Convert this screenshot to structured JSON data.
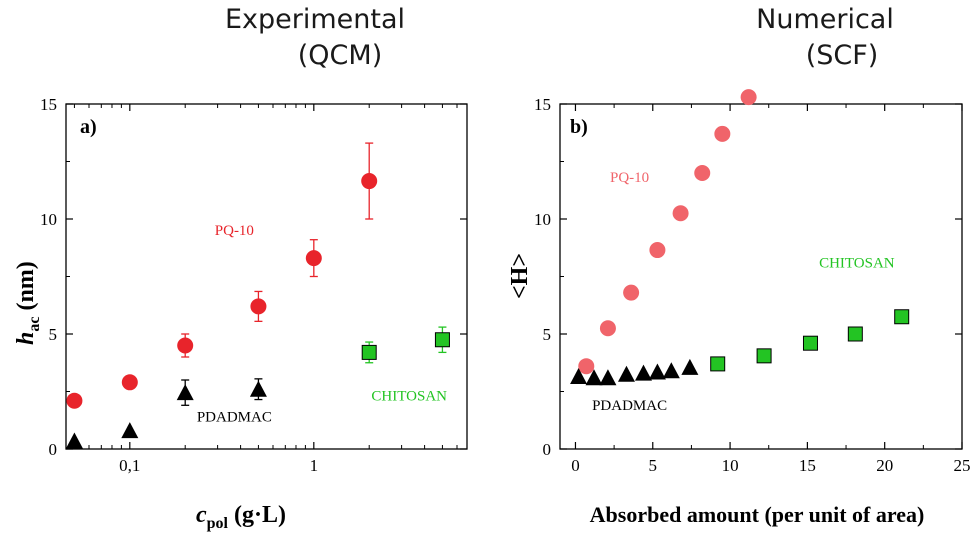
{
  "headers": {
    "left": {
      "line1": "Experimental",
      "line2": "(QCM)"
    },
    "right": {
      "line1": "Numerical",
      "line2": "(SCF)"
    }
  },
  "chart_data": [
    {
      "type": "scatter",
      "panel_label": "a)",
      "xlabel_main": "c",
      "xlabel_sub": "pol",
      "xlabel_rest": " (g·L)",
      "ylabel_main": "h",
      "ylabel_sub": "ac",
      "ylabel_rest": " (nm)",
      "xscale": "log",
      "xlim": [
        0.045,
        6.8
      ],
      "ylim": [
        0,
        15
      ],
      "xticks": [
        {
          "value": 0.1,
          "label": "0,1"
        },
        {
          "value": 1,
          "label": "1"
        }
      ],
      "yticks": [
        0,
        5,
        10,
        15
      ],
      "series": [
        {
          "name": "PQ-10",
          "marker": "circle",
          "color": "#e8242b",
          "label_x": 0.37,
          "label_y": 9.3,
          "points": [
            {
              "x": 0.05,
              "y": 2.1,
              "err": 0
            },
            {
              "x": 0.1,
              "y": 2.9,
              "err": 0
            },
            {
              "x": 0.2,
              "y": 4.5,
              "err": 0.5
            },
            {
              "x": 0.5,
              "y": 6.2,
              "err": 0.65
            },
            {
              "x": 1.0,
              "y": 8.3,
              "err": 0.8
            },
            {
              "x": 2.0,
              "y": 11.65,
              "err": 1.65
            }
          ]
        },
        {
          "name": "PDADMAC",
          "marker": "triangle",
          "color": "#000000",
          "label_x": 0.37,
          "label_y": 1.2,
          "points": [
            {
              "x": 0.05,
              "y": 0.35,
              "err": 0
            },
            {
              "x": 0.1,
              "y": 0.8,
              "err": 0
            },
            {
              "x": 0.2,
              "y": 2.45,
              "err": 0.55
            },
            {
              "x": 0.5,
              "y": 2.6,
              "err": 0.45
            }
          ]
        },
        {
          "name": "CHITOSAN",
          "marker": "square",
          "color": "#23c423",
          "label_x": 3.3,
          "label_y": 2.1,
          "points": [
            {
              "x": 2.0,
              "y": 4.2,
              "err": 0.45
            },
            {
              "x": 5.0,
              "y": 4.75,
              "err": 0.55
            }
          ]
        }
      ]
    },
    {
      "type": "scatter",
      "panel_label": "b)",
      "xlabel": "Absorbed amount (per unit of area)",
      "ylabel": "<H>",
      "xscale": "linear",
      "xlim": [
        -1,
        25
      ],
      "ylim": [
        0,
        15
      ],
      "xticks": [
        0,
        5,
        10,
        15,
        20,
        25
      ],
      "yticks": [
        0,
        5,
        10,
        15
      ],
      "series": [
        {
          "name": "PQ-10",
          "marker": "circle",
          "color": "#f0646a",
          "label_x": 3.5,
          "label_y": 11.6,
          "points": [
            {
              "x": 0.7,
              "y": 3.6
            },
            {
              "x": 2.1,
              "y": 5.25
            },
            {
              "x": 3.6,
              "y": 6.8
            },
            {
              "x": 5.3,
              "y": 8.65
            },
            {
              "x": 6.8,
              "y": 10.25
            },
            {
              "x": 8.2,
              "y": 12.0
            },
            {
              "x": 9.5,
              "y": 13.7
            },
            {
              "x": 11.2,
              "y": 15.3
            }
          ]
        },
        {
          "name": "PDADMAC",
          "marker": "triangle",
          "color": "#000000",
          "label_x": 3.5,
          "label_y": 1.7,
          "points": [
            {
              "x": 0.2,
              "y": 3.15
            },
            {
              "x": 1.2,
              "y": 3.1
            },
            {
              "x": 2.1,
              "y": 3.1
            },
            {
              "x": 3.3,
              "y": 3.25
            },
            {
              "x": 4.4,
              "y": 3.3
            },
            {
              "x": 5.3,
              "y": 3.35
            },
            {
              "x": 6.2,
              "y": 3.4
            },
            {
              "x": 7.4,
              "y": 3.55
            }
          ]
        },
        {
          "name": "CHITOSAN",
          "marker": "square",
          "color": "#23c423",
          "label_x": 18.2,
          "label_y": 7.9,
          "points": [
            {
              "x": 9.2,
              "y": 3.7
            },
            {
              "x": 12.2,
              "y": 4.05
            },
            {
              "x": 15.2,
              "y": 4.6
            },
            {
              "x": 18.1,
              "y": 5.0
            },
            {
              "x": 21.1,
              "y": 5.75
            }
          ]
        }
      ]
    }
  ]
}
